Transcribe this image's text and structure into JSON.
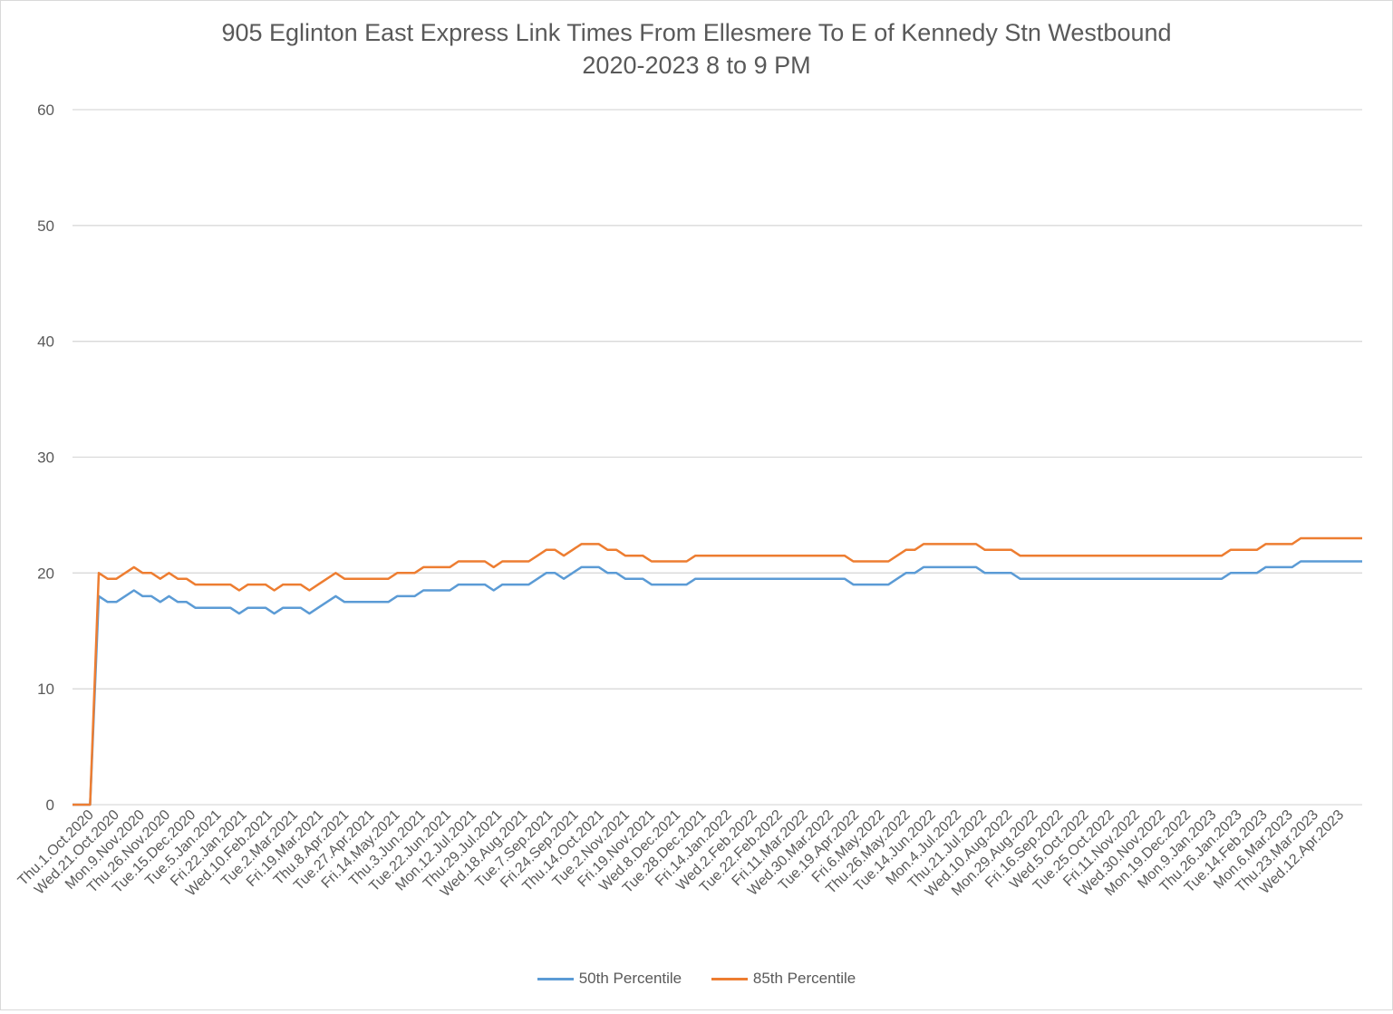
{
  "chart_data": {
    "type": "line",
    "title": "905 Eglinton East Express Link Times From Ellesmere To E of Kennedy Stn Westbound",
    "subtitle": "2020-2023 8 to 9 PM",
    "xlabel": "",
    "ylabel": "",
    "ylim": [
      0,
      60
    ],
    "yticks": [
      "0",
      "10",
      "20",
      "30",
      "40",
      "50",
      "60"
    ],
    "grid": true,
    "legend_position": "bottom",
    "x_range": [
      "2020-10-01",
      "2023-04-30"
    ],
    "x_tick_labels": [
      "Thu.1.Oct.2020",
      "Wed.21.Oct.2020",
      "Mon.9.Nov.2020",
      "Thu.26.Nov.2020",
      "Tue.15.Dec.2020",
      "Tue.5.Jan.2021",
      "Fri.22.Jan.2021",
      "Wed.10.Feb.2021",
      "Tue.2.Mar.2021",
      "Fri.19.Mar.2021",
      "Thu.8.Apr.2021",
      "Tue.27.Apr.2021",
      "Fri.14.May.2021",
      "Thu.3.Jun.2021",
      "Tue.22.Jun.2021",
      "Mon.12.Jul.2021",
      "Thu.29.Jul.2021",
      "Wed.18.Aug.2021",
      "Tue.7.Sep.2021",
      "Fri.24.Sep.2021",
      "Thu.14.Oct.2021",
      "Tue.2.Nov.2021",
      "Fri.19.Nov.2021",
      "Wed.8.Dec.2021",
      "Tue.28.Dec.2021",
      "Fri.14.Jan.2022",
      "Wed.2.Feb.2022",
      "Tue.22.Feb.2022",
      "Fri.11.Mar.2022",
      "Wed.30.Mar.2022",
      "Tue.19.Apr.2022",
      "Fri.6.May.2022",
      "Thu.26.May.2022",
      "Tue.14.Jun.2022",
      "Mon.4.Jul.2022",
      "Thu.21.Jul.2022",
      "Wed.10.Aug.2022",
      "Mon.29.Aug.2022",
      "Fri.16.Sep.2022",
      "Wed.5.Oct.2022",
      "Tue.25.Oct.2022",
      "Fri.11.Nov.2022",
      "Wed.30.Nov.2022",
      "Mon.19.Dec.2022",
      "Mon.9.Jan.2023",
      "Thu.26.Jan.2023",
      "Tue.14.Feb.2023",
      "Mon.6.Mar.2023",
      "Thu.23.Mar.2023",
      "Wed.12.Apr.2023"
    ],
    "series": [
      {
        "name": "50th Percentile",
        "color": "#5b9bd5",
        "values": [
          0,
          0,
          0,
          18,
          17.5,
          17.5,
          18,
          18.5,
          18,
          18,
          17.5,
          18,
          17.5,
          17.5,
          17,
          17,
          17,
          17,
          17,
          16.5,
          17,
          17,
          17,
          16.5,
          17,
          17,
          17,
          16.5,
          17,
          17.5,
          18,
          17.5,
          17.5,
          17.5,
          17.5,
          17.5,
          17.5,
          18,
          18,
          18,
          18.5,
          18.5,
          18.5,
          18.5,
          19,
          19,
          19,
          19,
          18.5,
          19,
          19,
          19,
          19,
          19.5,
          20,
          20,
          19.5,
          20,
          20.5,
          20.5,
          20.5,
          20,
          20,
          19.5,
          19.5,
          19.5,
          19,
          19,
          19,
          19,
          19,
          19.5,
          19.5,
          19.5,
          19.5,
          19.5,
          19.5,
          19.5,
          19.5,
          19.5,
          19.5,
          19.5,
          19.5,
          19.5,
          19.5,
          19.5,
          19.5,
          19.5,
          19.5,
          19,
          19,
          19,
          19,
          19,
          19.5,
          20,
          20,
          20.5,
          20.5,
          20.5,
          20.5,
          20.5,
          20.5,
          20.5,
          20,
          20,
          20,
          20,
          19.5,
          19.5,
          19.5,
          19.5,
          19.5,
          19.5,
          19.5,
          19.5,
          19.5,
          19.5,
          19.5,
          19.5,
          19.5,
          19.5,
          19.5,
          19.5,
          19.5,
          19.5,
          19.5,
          19.5,
          19.5,
          19.5,
          19.5,
          19.5,
          20,
          20,
          20,
          20,
          20.5,
          20.5,
          20.5,
          20.5,
          21,
          21,
          21,
          21,
          21,
          21,
          21,
          21
        ]
      },
      {
        "name": "85th Percentile",
        "color": "#ed7d31",
        "values": [
          0,
          0,
          0,
          20,
          19.5,
          19.5,
          20,
          20.5,
          20,
          20,
          19.5,
          20,
          19.5,
          19.5,
          19,
          19,
          19,
          19,
          19,
          18.5,
          19,
          19,
          19,
          18.5,
          19,
          19,
          19,
          18.5,
          19,
          19.5,
          20,
          19.5,
          19.5,
          19.5,
          19.5,
          19.5,
          19.5,
          20,
          20,
          20,
          20.5,
          20.5,
          20.5,
          20.5,
          21,
          21,
          21,
          21,
          20.5,
          21,
          21,
          21,
          21,
          21.5,
          22,
          22,
          21.5,
          22,
          22.5,
          22.5,
          22.5,
          22,
          22,
          21.5,
          21.5,
          21.5,
          21,
          21,
          21,
          21,
          21,
          21.5,
          21.5,
          21.5,
          21.5,
          21.5,
          21.5,
          21.5,
          21.5,
          21.5,
          21.5,
          21.5,
          21.5,
          21.5,
          21.5,
          21.5,
          21.5,
          21.5,
          21.5,
          21,
          21,
          21,
          21,
          21,
          21.5,
          22,
          22,
          22.5,
          22.5,
          22.5,
          22.5,
          22.5,
          22.5,
          22.5,
          22,
          22,
          22,
          22,
          21.5,
          21.5,
          21.5,
          21.5,
          21.5,
          21.5,
          21.5,
          21.5,
          21.5,
          21.5,
          21.5,
          21.5,
          21.5,
          21.5,
          21.5,
          21.5,
          21.5,
          21.5,
          21.5,
          21.5,
          21.5,
          21.5,
          21.5,
          21.5,
          22,
          22,
          22,
          22,
          22.5,
          22.5,
          22.5,
          22.5,
          23,
          23,
          23,
          23,
          23,
          23,
          23,
          23
        ]
      }
    ]
  }
}
